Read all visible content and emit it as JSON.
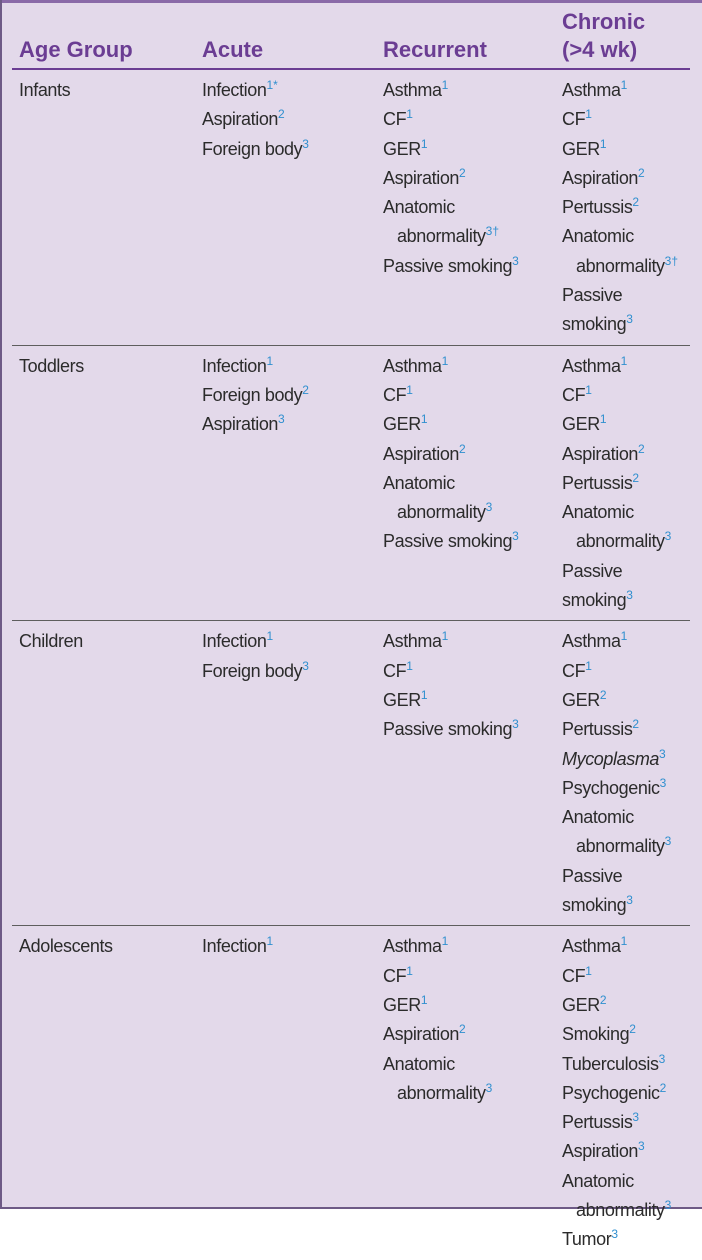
{
  "headers": {
    "age": "Age Group",
    "acute": "Acute",
    "recurrent": "Recurrent",
    "chronic_l1": "Chronic",
    "chronic_l2": "(>4 wk)"
  },
  "rows": [
    {
      "age": "Infants",
      "acute": [
        {
          "text": "Infection",
          "sup": "1*"
        },
        {
          "text": "Aspiration",
          "sup": "2"
        },
        {
          "text": "Foreign body",
          "sup": "3"
        }
      ],
      "recurrent": [
        {
          "text": "Asthma",
          "sup": "1"
        },
        {
          "text": "CF",
          "sup": "1"
        },
        {
          "text": "GER",
          "sup": "1"
        },
        {
          "text": "Aspiration",
          "sup": "2"
        },
        {
          "text": "Anatomic abnormality",
          "sup": "3†",
          "wrap": true
        },
        {
          "text": "Passive smoking",
          "sup": "3",
          "wrap": true
        }
      ],
      "chronic": [
        {
          "text": "Asthma",
          "sup": "1"
        },
        {
          "text": "CF",
          "sup": "1"
        },
        {
          "text": "GER",
          "sup": "1"
        },
        {
          "text": "Aspiration",
          "sup": "2"
        },
        {
          "text": "Pertussis",
          "sup": "2"
        },
        {
          "text": "Anatomic abnormality",
          "sup": "3†",
          "wrap": true
        },
        {
          "text": "Passive smoking",
          "sup": "3"
        }
      ]
    },
    {
      "age": "Toddlers",
      "acute": [
        {
          "text": "Infection",
          "sup": "1"
        },
        {
          "text": "Foreign body",
          "sup": "2"
        },
        {
          "text": "Aspiration",
          "sup": "3"
        }
      ],
      "recurrent": [
        {
          "text": "Asthma",
          "sup": "1"
        },
        {
          "text": "CF",
          "sup": "1"
        },
        {
          "text": "GER",
          "sup": "1"
        },
        {
          "text": "Aspiration",
          "sup": "2"
        },
        {
          "text": "Anatomic abnormality",
          "sup": "3",
          "wrap": true
        },
        {
          "text": "Passive smoking",
          "sup": "3",
          "wrap": true
        }
      ],
      "chronic": [
        {
          "text": "Asthma",
          "sup": "1"
        },
        {
          "text": "CF",
          "sup": "1"
        },
        {
          "text": "GER",
          "sup": "1"
        },
        {
          "text": "Aspiration",
          "sup": "2"
        },
        {
          "text": "Pertussis",
          "sup": "2"
        },
        {
          "text": "Anatomic abnormality",
          "sup": "3",
          "wrap": true
        },
        {
          "text": "Passive smoking",
          "sup": "3"
        }
      ]
    },
    {
      "age": "Children",
      "acute": [
        {
          "text": "Infection",
          "sup": "1"
        },
        {
          "text": "Foreign body",
          "sup": "3"
        }
      ],
      "recurrent": [
        {
          "text": "Asthma",
          "sup": "1"
        },
        {
          "text": "CF",
          "sup": "1"
        },
        {
          "text": "GER",
          "sup": "1"
        },
        {
          "text": "Passive smoking",
          "sup": "3",
          "wrap": true
        }
      ],
      "chronic": [
        {
          "text": "Asthma",
          "sup": "1"
        },
        {
          "text": "CF",
          "sup": "1"
        },
        {
          "text": "GER",
          "sup": "2"
        },
        {
          "text": "Pertussis",
          "sup": "2"
        },
        {
          "text": "Mycoplasma",
          "sup": "3",
          "italic": true
        },
        {
          "text": "Psychogenic",
          "sup": "3"
        },
        {
          "text": "Anatomic abnormality",
          "sup": "3",
          "wrap": true
        },
        {
          "text": "Passive smoking",
          "sup": "3"
        }
      ]
    },
    {
      "age": "Adolescents",
      "acute": [
        {
          "text": "Infection",
          "sup": "1"
        }
      ],
      "recurrent": [
        {
          "text": "Asthma",
          "sup": "1"
        },
        {
          "text": "CF",
          "sup": "1"
        },
        {
          "text": "GER",
          "sup": "1"
        },
        {
          "text": "Aspiration",
          "sup": "2"
        },
        {
          "text": "Anatomic abnormality",
          "sup": "3",
          "wrap": true
        }
      ],
      "chronic": [
        {
          "text": "Asthma",
          "sup": "1"
        },
        {
          "text": "CF",
          "sup": "1"
        },
        {
          "text": "GER",
          "sup": "2"
        },
        {
          "text": "Smoking",
          "sup": "2"
        },
        {
          "text": "Tuberculosis",
          "sup": "3"
        },
        {
          "text": "Psychogenic",
          "sup": "2"
        },
        {
          "text": "Pertussis",
          "sup": "3"
        },
        {
          "text": "Aspiration",
          "sup": "3"
        },
        {
          "text": "Anatomic abnormality",
          "sup": "3",
          "wrap": true
        },
        {
          "text": "Tumor",
          "sup": "3"
        }
      ]
    }
  ]
}
